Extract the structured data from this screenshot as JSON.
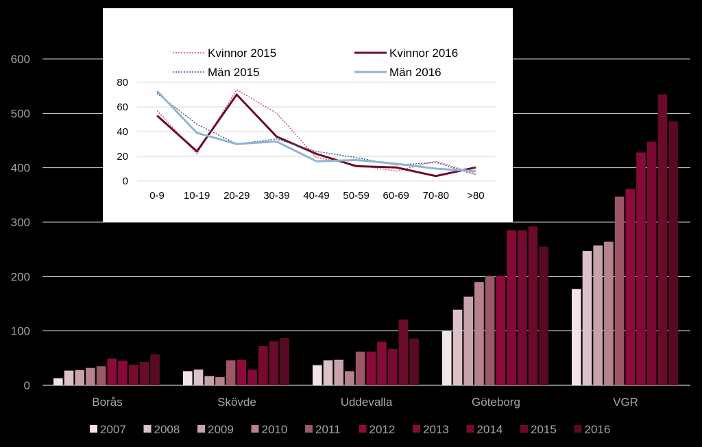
{
  "chart_data": [
    {
      "type": "bar",
      "categories": [
        "Borås",
        "Skövde",
        "Uddevalla",
        "Göteborg",
        "VGR"
      ],
      "yticks": [
        "0",
        "100",
        "200",
        "300",
        "400",
        "500",
        "600"
      ],
      "ylim": [
        0,
        600
      ],
      "grid": true,
      "legend_position": "bottom",
      "series": [
        {
          "name": "2007",
          "color": "#f2e3e6",
          "values": [
            13,
            26,
            37,
            100,
            177
          ]
        },
        {
          "name": "2008",
          "color": "#dcc2c8",
          "values": [
            27,
            29,
            46,
            139,
            247
          ]
        },
        {
          "name": "2009",
          "color": "#c9a3ab",
          "values": [
            28,
            17,
            47,
            163,
            257
          ]
        },
        {
          "name": "2010",
          "color": "#b6838d",
          "values": [
            32,
            15,
            26,
            190,
            264
          ]
        },
        {
          "name": "2011",
          "color": "#9c5868",
          "values": [
            35,
            46,
            62,
            201,
            347
          ]
        },
        {
          "name": "2012",
          "color": "#8c0a3c",
          "values": [
            49,
            47,
            62,
            201,
            361
          ]
        },
        {
          "name": "2013",
          "color": "#860a38",
          "values": [
            45,
            29,
            80,
            285,
            428
          ]
        },
        {
          "name": "2014",
          "color": "#780a32",
          "values": [
            38,
            72,
            67,
            285,
            448
          ]
        },
        {
          "name": "2015",
          "color": "#6a0a2c",
          "values": [
            43,
            81,
            121,
            292,
            535
          ]
        },
        {
          "name": "2016",
          "color": "#580a24",
          "values": [
            57,
            87,
            86,
            255,
            485
          ]
        }
      ]
    },
    {
      "type": "line",
      "categories": [
        "0-9",
        "10-19",
        "20-29",
        "30-39",
        "40-49",
        "50-59",
        "60-69",
        "70-80",
        ">80"
      ],
      "yticks": [
        "0",
        "20",
        "40",
        "60",
        "80"
      ],
      "ylim": [
        0,
        80
      ],
      "grid": true,
      "legend_position": "top",
      "series": [
        {
          "name": "Kvinnor 2015",
          "color": "#d9545c",
          "dashed": true,
          "width": 1.5,
          "values": [
            57,
            22,
            74,
            55,
            19,
            13,
            8,
            16,
            6
          ]
        },
        {
          "name": "Kvinnor 2016",
          "color": "#6e0a2a",
          "dashed": false,
          "width": 3,
          "values": [
            53,
            24,
            70,
            36,
            22,
            12,
            11,
            4,
            11
          ]
        },
        {
          "name": "Män 2015",
          "color": "#3b5b8c",
          "dashed": true,
          "width": 1.5,
          "values": [
            71,
            46,
            30,
            34,
            24,
            19,
            13,
            15,
            5
          ]
        },
        {
          "name": "Män 2016",
          "color": "#8fb4d6",
          "dashed": false,
          "width": 3,
          "values": [
            73,
            39,
            30,
            32,
            16,
            17,
            14,
            10,
            8
          ]
        }
      ]
    }
  ]
}
